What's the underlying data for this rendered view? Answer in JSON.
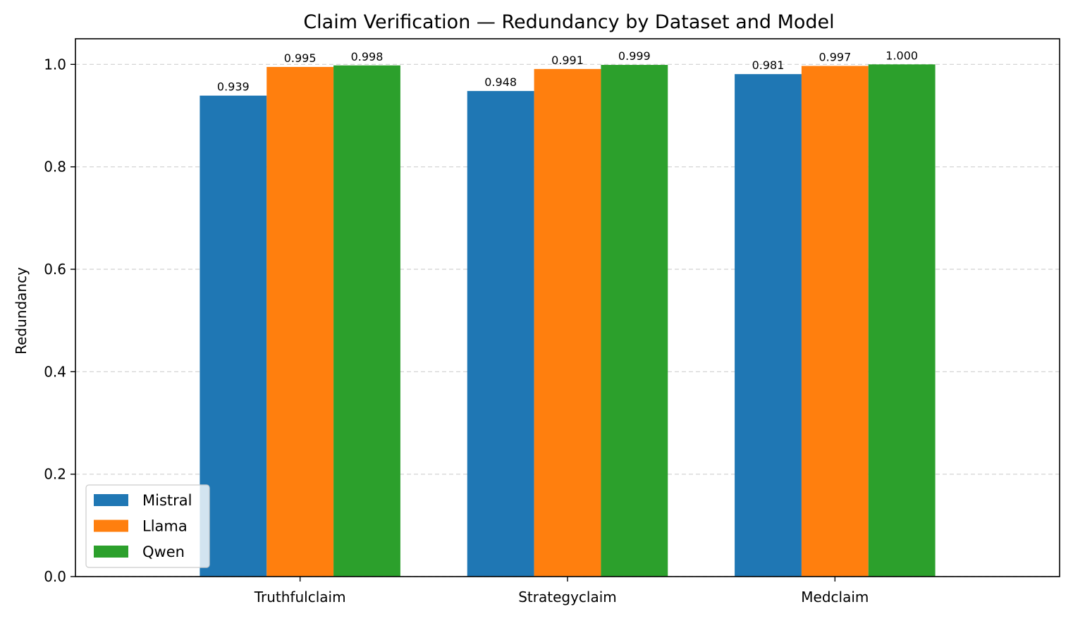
{
  "chart_data": {
    "type": "bar",
    "title": "Claim Verification — Redundancy by Dataset and Model",
    "xlabel": "",
    "ylabel": "Redundancy",
    "categories": [
      "Truthfulclaim",
      "Strategyclaim",
      "Medclaim"
    ],
    "series": [
      {
        "name": "Mistral",
        "color": "#1f77b4",
        "values": [
          0.939,
          0.948,
          0.981
        ],
        "labels": [
          "0.939",
          "0.948",
          "0.981"
        ]
      },
      {
        "name": "Llama",
        "color": "#ff7f0e",
        "values": [
          0.995,
          0.991,
          0.997
        ],
        "labels": [
          "0.995",
          "0.991",
          "0.997"
        ]
      },
      {
        "name": "Qwen",
        "color": "#2ca02c",
        "values": [
          0.998,
          0.999,
          1.0
        ],
        "labels": [
          "0.998",
          "0.999",
          "1.000"
        ]
      }
    ],
    "ylim": [
      0,
      1.05
    ],
    "yticks": [
      0.0,
      0.2,
      0.4,
      0.6,
      0.8,
      1.0
    ],
    "ytick_labels": [
      "0.0",
      "0.2",
      "0.4",
      "0.6",
      "0.8",
      "1.0"
    ],
    "grid": "y-dashed",
    "legend_position": "lower-left"
  }
}
